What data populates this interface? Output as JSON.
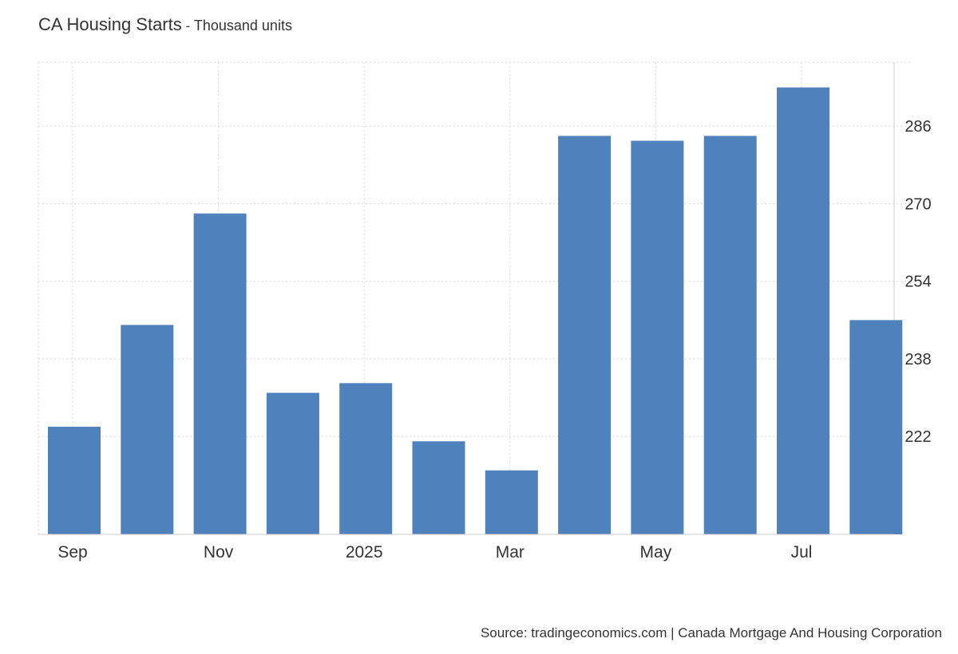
{
  "header": {
    "title": "CA Housing Starts",
    "separator": " - ",
    "subtitle": "Thousand units"
  },
  "footer": {
    "source": "Source: tradingeconomics.com | Canada Mortgage And Housing Corporation"
  },
  "colors": {
    "bar": "#4f81bd",
    "grid": "#d9d9d9",
    "axis": "#cccccc",
    "text": "#333333"
  },
  "chart_data": {
    "type": "bar",
    "title": "CA Housing Starts",
    "subtitle": "Thousand units",
    "xlabel": "",
    "ylabel": "",
    "categories": [
      "Sep 2024",
      "Oct 2024",
      "Nov 2024",
      "Dec 2024",
      "Jan 2025",
      "Feb 2025",
      "Mar 2025",
      "Apr 2025",
      "May 2025",
      "Jun 2025",
      "Jul 2025",
      "Aug 2025"
    ],
    "x_tick_labels": [
      "Sep",
      "",
      "Nov",
      "",
      "2025",
      "",
      "Mar",
      "",
      "May",
      "",
      "Jul",
      ""
    ],
    "values": [
      224,
      245,
      268,
      231,
      233,
      221,
      215,
      284,
      283,
      284,
      294,
      246
    ],
    "y_ticks": [
      222,
      238,
      254,
      270,
      286
    ],
    "ylim": [
      201.8,
      299.2
    ],
    "grid": true,
    "y_axis_position": "right",
    "legend": "none"
  }
}
